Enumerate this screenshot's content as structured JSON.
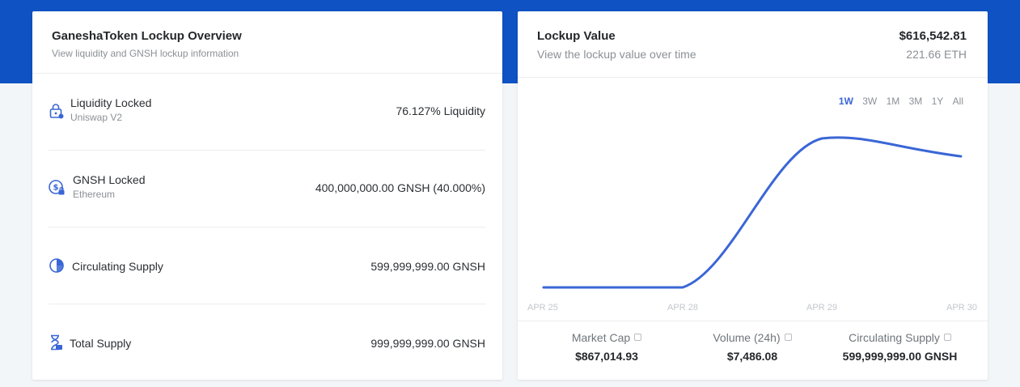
{
  "overview": {
    "title": "GaneshaToken Lockup Overview",
    "subtitle": "View liquidity and GNSH lockup information",
    "rows": [
      {
        "label": "Liquidity Locked",
        "sub": "Uniswap V2",
        "value": "76.127% Liquidity",
        "icon": "lock-icon"
      },
      {
        "label": "GNSH Locked",
        "sub": "Ethereum",
        "value": "400,000,000.00 GNSH (40.000%)",
        "icon": "coin-lock-icon"
      },
      {
        "label": "Circulating Supply",
        "sub": "",
        "value": "599,999,999.00 GNSH",
        "icon": "pie-chart-icon"
      },
      {
        "label": "Total Supply",
        "sub": "",
        "value": "999,999,999.00 GNSH",
        "icon": "hourglass-icon"
      }
    ]
  },
  "lockup": {
    "title": "Lockup Value",
    "subtitle": "View the lockup value over time",
    "usd": "$616,542.81",
    "eth": "221.66 ETH",
    "periods": [
      "1W",
      "3W",
      "1M",
      "3M",
      "1Y",
      "All"
    ],
    "active_period": "1W"
  },
  "chart_data": {
    "type": "line",
    "x": [
      "APR 25",
      "APR 28",
      "APR 29",
      "APR 30"
    ],
    "series": [
      {
        "values": [
          0,
          0,
          1.0,
          0.88
        ]
      }
    ],
    "line_color": "#3a66d6"
  },
  "stats": [
    {
      "label": "Market Cap",
      "value": "$867,014.93"
    },
    {
      "label": "Volume (24h)",
      "value": "$7,486.08"
    },
    {
      "label": "Circulating Supply",
      "value": "599,999,999.00 GNSH"
    }
  ],
  "colors": {
    "banner": "#0f52c4",
    "accent": "#3a66d6"
  }
}
